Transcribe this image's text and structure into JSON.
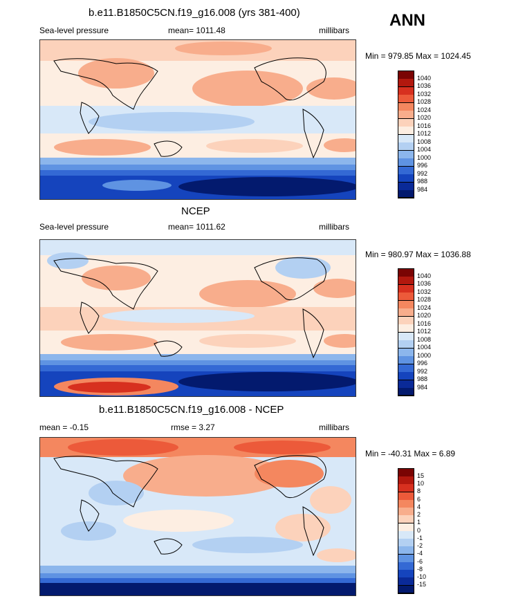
{
  "season": "ANN",
  "panels": [
    {
      "title": "b.e11.B1850C5CN.f19_g16.008 (yrs 381-400)",
      "left": "Sea-level pressure",
      "center": "mean= 1011.48",
      "right": "millibars",
      "minmax": "Min = 979.85 Max = 1024.45",
      "labels": [
        "1040",
        "1036",
        "1032",
        "1028",
        "1024",
        "1020",
        "1016",
        "1012",
        "1008",
        "1004",
        "1000",
        "996",
        "992",
        "988",
        "984"
      ]
    },
    {
      "title": "NCEP",
      "left": "Sea-level pressure",
      "center": "mean= 1011.62",
      "right": "millibars",
      "minmax": "Min = 980.97 Max = 1036.88",
      "labels": [
        "1040",
        "1036",
        "1032",
        "1028",
        "1024",
        "1020",
        "1016",
        "1012",
        "1008",
        "1004",
        "1000",
        "996",
        "992",
        "988",
        "984"
      ]
    },
    {
      "title": "b.e11.B1850C5CN.f19_g16.008 - NCEP",
      "left": "mean =  -0.15",
      "center": "rmse =   3.27",
      "right": "millibars",
      "minmax": "Min = -40.31 Max =   6.89",
      "labels": [
        "15",
        "10",
        "8",
        "6",
        "4",
        "2",
        "1",
        "0",
        "-1",
        "-2",
        "-4",
        "-6",
        "-8",
        "-10",
        "-15"
      ]
    }
  ],
  "colors": {
    "scale": [
      "#7a0403",
      "#b2180e",
      "#d7301f",
      "#ec5a3a",
      "#f4875f",
      "#f8ad8c",
      "#fcd2bb",
      "#fdeee2",
      "#d8e8f8",
      "#b3d0f2",
      "#8cb6ec",
      "#5f93e2",
      "#3469d4",
      "#1544bd",
      "#0a2a98",
      "#031a6e"
    ]
  }
}
